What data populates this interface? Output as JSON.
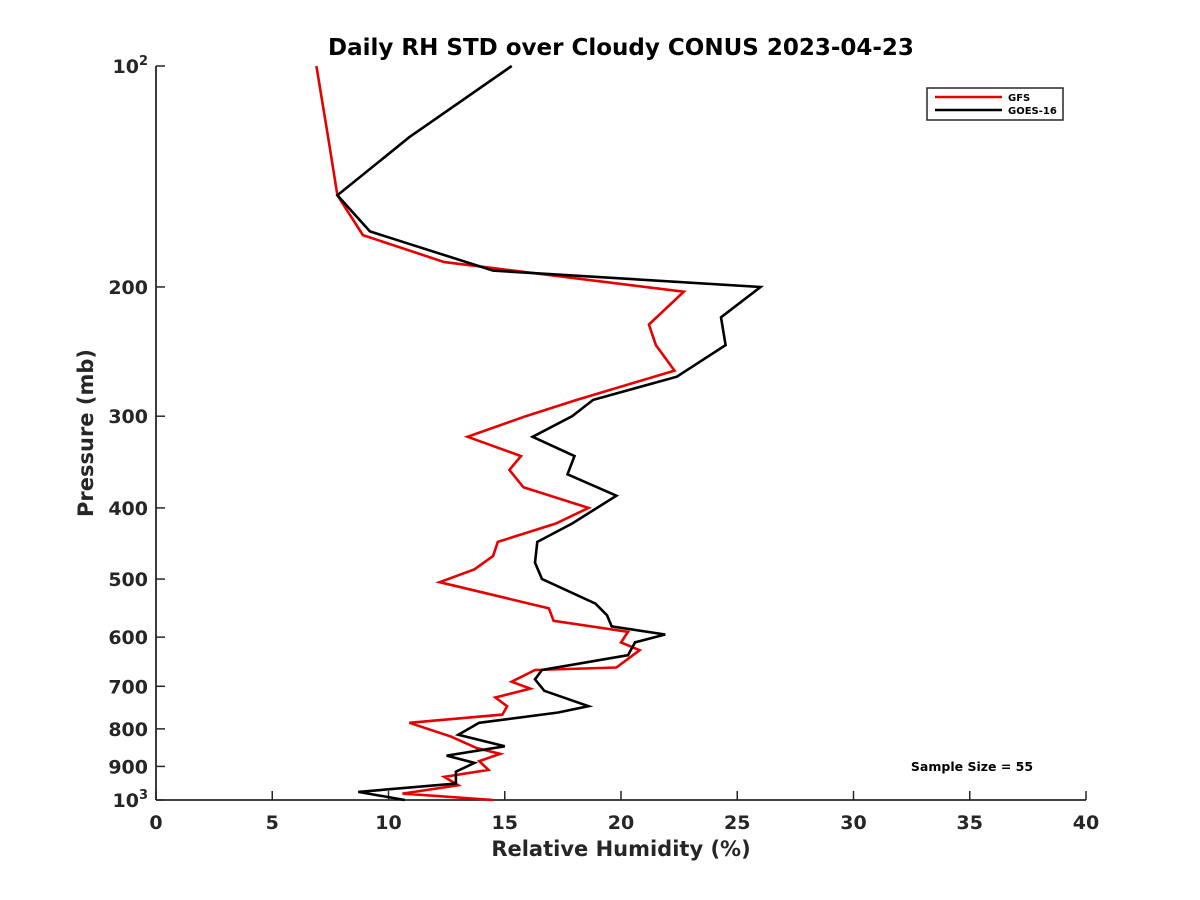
{
  "chart_data": {
    "type": "line",
    "title": "Daily RH STD over Cloudy CONUS 2023-04-23",
    "xlabel": "Relative Humidity (%)",
    "ylabel": "Pressure (mb)",
    "xlim": [
      0,
      40
    ],
    "ylim": [
      100,
      1000
    ],
    "yscale": "log",
    "y_reversed": true,
    "grid": false,
    "legend_position": "top-right",
    "x_ticks": [
      0,
      5,
      10,
      15,
      20,
      25,
      30,
      35,
      40
    ],
    "x_tick_labels": [
      "0",
      "5",
      "10",
      "15",
      "20",
      "25",
      "30",
      "35",
      "40"
    ],
    "y_ticks": [
      100,
      200,
      300,
      400,
      500,
      600,
      700,
      800,
      900,
      1000
    ],
    "y_tick_labels": [
      "10²",
      "200",
      "300",
      "400",
      "500",
      "600",
      "700",
      "800",
      "900",
      "10³"
    ],
    "annotation": "Sample Size = 55",
    "series": [
      {
        "name": "GFS",
        "color": "#e60000",
        "points": [
          [
            6.9,
            100
          ],
          [
            7.4,
            125
          ],
          [
            7.8,
            150
          ],
          [
            8.9,
            170
          ],
          [
            12.4,
            185
          ],
          [
            22.7,
            203
          ],
          [
            21.2,
            225
          ],
          [
            21.5,
            240
          ],
          [
            22.3,
            260
          ],
          [
            18.1,
            285
          ],
          [
            15.9,
            300
          ],
          [
            13.4,
            320
          ],
          [
            15.7,
            340
          ],
          [
            15.2,
            355
          ],
          [
            15.8,
            375
          ],
          [
            18.6,
            400
          ],
          [
            17.2,
            420
          ],
          [
            14.7,
            445
          ],
          [
            14.5,
            465
          ],
          [
            13.7,
            485
          ],
          [
            12.2,
            505
          ],
          [
            16.9,
            548
          ],
          [
            17.1,
            570
          ],
          [
            20.3,
            590
          ],
          [
            20.0,
            610
          ],
          [
            20.8,
            625
          ],
          [
            19.8,
            660
          ],
          [
            16.3,
            665
          ],
          [
            15.3,
            690
          ],
          [
            16.1,
            705
          ],
          [
            14.6,
            725
          ],
          [
            15.1,
            745
          ],
          [
            14.9,
            765
          ],
          [
            10.9,
            785
          ],
          [
            12.7,
            820
          ],
          [
            13.8,
            850
          ],
          [
            14.8,
            865
          ],
          [
            13.9,
            885
          ],
          [
            14.3,
            910
          ],
          [
            12.4,
            930
          ],
          [
            13.0,
            955
          ],
          [
            10.6,
            980
          ],
          [
            14.5,
            1000
          ]
        ]
      },
      {
        "name": "GOES-16",
        "color": "#000000",
        "points": [
          [
            15.3,
            100
          ],
          [
            10.9,
            125
          ],
          [
            7.8,
            150
          ],
          [
            9.2,
            168
          ],
          [
            14.5,
            190
          ],
          [
            26.0,
            200
          ],
          [
            24.3,
            220
          ],
          [
            24.5,
            240
          ],
          [
            22.4,
            265
          ],
          [
            18.8,
            285
          ],
          [
            17.9,
            300
          ],
          [
            16.2,
            320
          ],
          [
            18.0,
            340
          ],
          [
            17.7,
            360
          ],
          [
            19.8,
            385
          ],
          [
            17.9,
            420
          ],
          [
            16.4,
            445
          ],
          [
            16.3,
            475
          ],
          [
            16.6,
            500
          ],
          [
            18.9,
            540
          ],
          [
            19.4,
            560
          ],
          [
            19.6,
            580
          ],
          [
            21.9,
            595
          ],
          [
            20.6,
            610
          ],
          [
            20.3,
            635
          ],
          [
            16.6,
            665
          ],
          [
            16.3,
            685
          ],
          [
            16.7,
            710
          ],
          [
            18.6,
            745
          ],
          [
            17.3,
            760
          ],
          [
            13.9,
            785
          ],
          [
            13.0,
            815
          ],
          [
            15.0,
            845
          ],
          [
            12.5,
            870
          ],
          [
            13.7,
            890
          ],
          [
            12.9,
            915
          ],
          [
            12.9,
            950
          ],
          [
            8.7,
            975
          ],
          [
            10.7,
            1000
          ]
        ]
      }
    ]
  }
}
